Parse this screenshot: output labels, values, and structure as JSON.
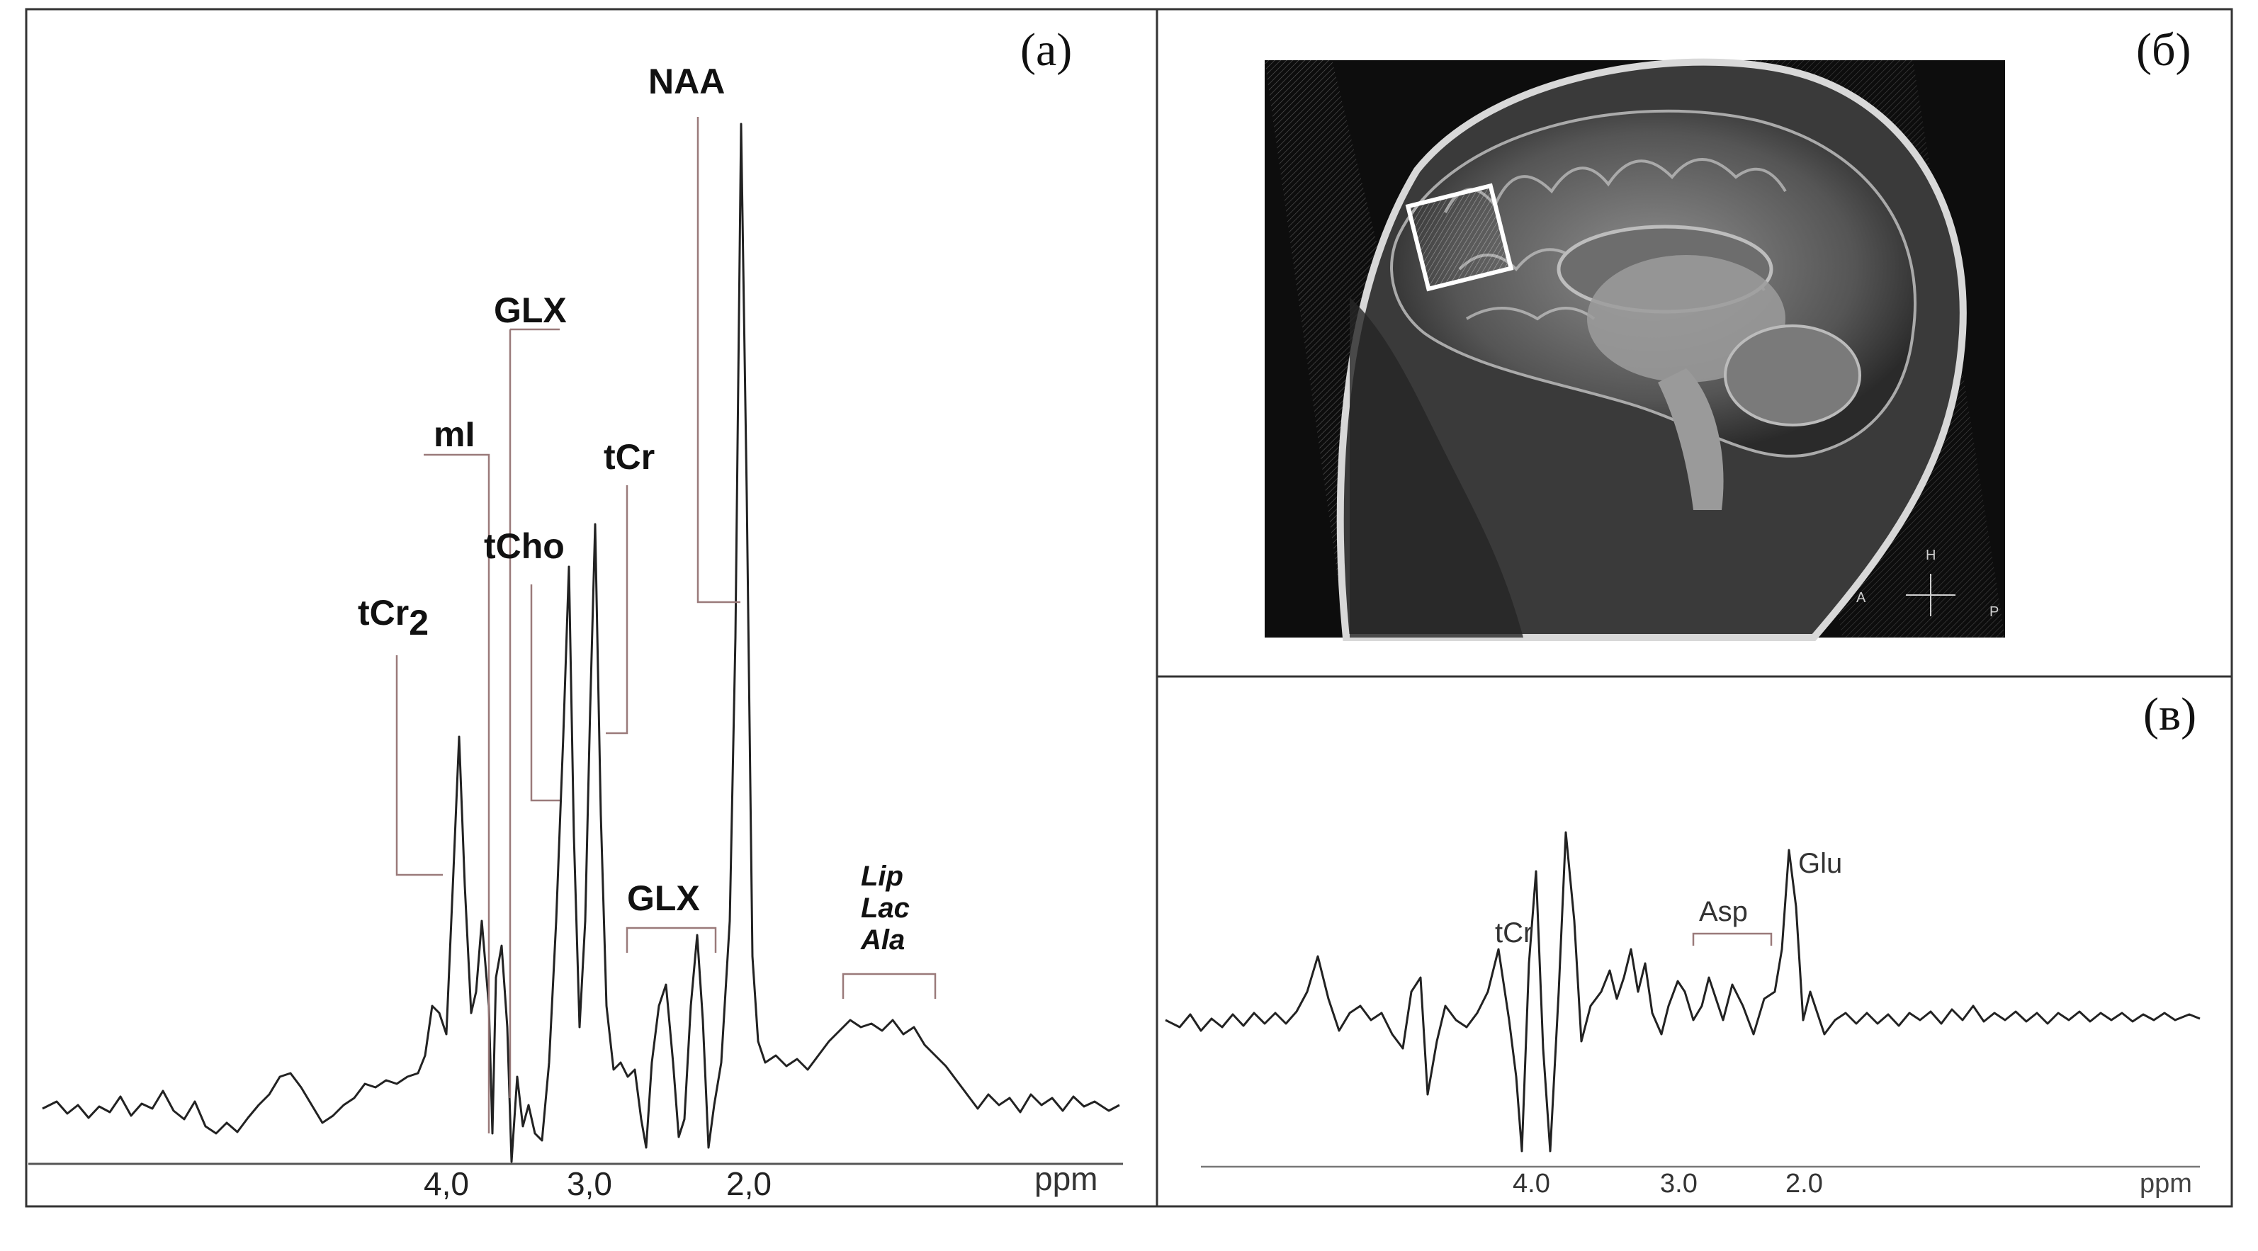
{
  "panels": {
    "a": {
      "label": "(a)",
      "unit": "ppm",
      "ticks": [
        "4,0",
        "3,0",
        "2,0"
      ],
      "peaks": {
        "naa": "NAA",
        "glx_top": "GLX",
        "mi": "mI",
        "tcr": "tCr",
        "tcho": "tCho",
        "tcr2_main": "tCr",
        "tcr2_sub": "2",
        "glx_low": "GLX",
        "lip": "Lip",
        "lac": "Lac",
        "ala": "Ala"
      }
    },
    "b": {
      "label": "(б)",
      "orientation": {
        "h": "H",
        "a": "A",
        "p": "P"
      }
    },
    "c": {
      "label": "(в)",
      "unit": "ppm",
      "ticks": [
        "4.0",
        "3.0",
        "2.0"
      ],
      "peaks": {
        "tcr": "tCr",
        "asp": "Asp",
        "glu": "Glu"
      }
    }
  },
  "colors": {
    "border": "#333333",
    "trace": "#222222",
    "bracket": "#9a7a7a"
  }
}
